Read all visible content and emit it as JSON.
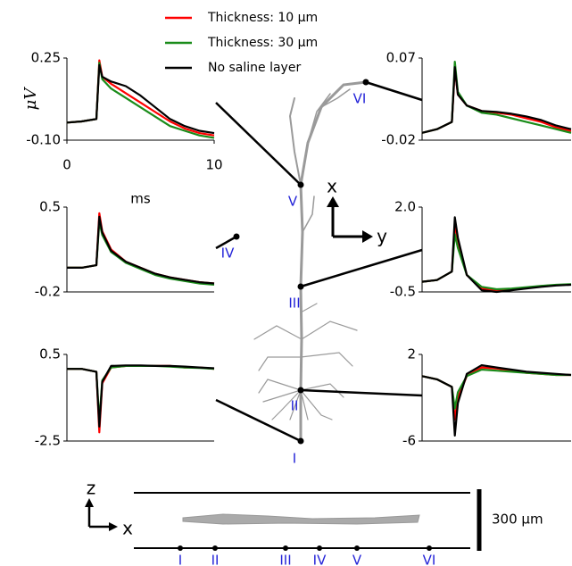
{
  "chart_data": [
    {
      "type": "line",
      "ylabel": "μV",
      "xlabel": "ms",
      "x": [
        0,
        1,
        2,
        2.2,
        2.4,
        3,
        4,
        5,
        6,
        7,
        8,
        9,
        10
      ],
      "xlim": [
        0,
        10
      ],
      "xticks": [
        0,
        10
      ],
      "ylim": [
        -0.1,
        0.25
      ],
      "yticks": [
        {
          "value": -0.1,
          "label": "-0.10"
        },
        0.25
      ],
      "series": [
        {
          "name": "Thickness: 10 μm",
          "color": "#ff0000",
          "values": [
            -0.025,
            -0.02,
            -0.01,
            0.24,
            0.17,
            0.14,
            0.1,
            0.06,
            0.02,
            -0.02,
            -0.05,
            -0.07,
            -0.08
          ]
        },
        {
          "name": "Thickness: 30 μm",
          "color": "#1a8c1a",
          "values": [
            -0.025,
            -0.02,
            -0.01,
            0.23,
            0.16,
            0.12,
            0.08,
            0.04,
            0.0,
            -0.04,
            -0.06,
            -0.08,
            -0.09
          ]
        },
        {
          "name": "No saline layer",
          "color": "#000000",
          "values": [
            -0.025,
            -0.02,
            -0.01,
            0.22,
            0.17,
            0.15,
            0.13,
            0.09,
            0.04,
            -0.01,
            -0.04,
            -0.06,
            -0.07
          ]
        }
      ]
    },
    {
      "type": "line",
      "x": [
        0,
        1,
        2,
        2.2,
        2.4,
        3,
        4,
        5,
        6,
        7,
        8,
        9,
        10
      ],
      "xlim": [
        0,
        10
      ],
      "ylim": [
        -0.02,
        0.07
      ],
      "yticks": [
        -0.02,
        0.07
      ],
      "series": [
        {
          "color": "#ff0000",
          "values": [
            -0.012,
            -0.008,
            0.0,
            0.058,
            0.03,
            0.018,
            0.012,
            0.01,
            0.008,
            0.004,
            0.0,
            -0.006,
            -0.01
          ]
        },
        {
          "color": "#1a8c1a",
          "values": [
            -0.012,
            -0.008,
            0.0,
            0.066,
            0.033,
            0.018,
            0.01,
            0.008,
            0.004,
            0.0,
            -0.004,
            -0.008,
            -0.012
          ]
        },
        {
          "color": "#000000",
          "values": [
            -0.012,
            -0.008,
            0.0,
            0.06,
            0.03,
            0.018,
            0.012,
            0.011,
            0.009,
            0.006,
            0.002,
            -0.004,
            -0.008
          ]
        }
      ]
    },
    {
      "type": "line",
      "x": [
        0,
        1,
        2,
        2.2,
        2.4,
        3,
        4,
        5,
        6,
        7,
        8,
        9,
        10
      ],
      "xlim": [
        0,
        10
      ],
      "ylim": [
        -0.2,
        0.5
      ],
      "yticks": [
        -0.2,
        0.5
      ],
      "series": [
        {
          "color": "#ff0000",
          "values": [
            0,
            0,
            0.02,
            0.45,
            0.3,
            0.15,
            0.05,
            0,
            -0.05,
            -0.08,
            -0.1,
            -0.12,
            -0.13
          ]
        },
        {
          "color": "#1a8c1a",
          "values": [
            0,
            0,
            0.02,
            0.38,
            0.27,
            0.13,
            0.04,
            -0.01,
            -0.06,
            -0.09,
            -0.11,
            -0.13,
            -0.14
          ]
        },
        {
          "color": "#000000",
          "values": [
            0,
            0,
            0.02,
            0.42,
            0.29,
            0.14,
            0.05,
            0,
            -0.05,
            -0.08,
            -0.1,
            -0.12,
            -0.13
          ]
        }
      ]
    },
    {
      "type": "line",
      "x": [
        0,
        1,
        2,
        2.2,
        2.4,
        3,
        4,
        5,
        6,
        7,
        8,
        9,
        10
      ],
      "xlim": [
        0,
        10
      ],
      "ylim": [
        -0.5,
        2.0
      ],
      "yticks": [
        -0.5,
        {
          "value": 2.0,
          "label": "2.0"
        }
      ],
      "series": [
        {
          "color": "#ff0000",
          "values": [
            -0.2,
            -0.15,
            0.1,
            1.5,
            1.0,
            0.0,
            -0.4,
            -0.45,
            -0.42,
            -0.38,
            -0.33,
            -0.3,
            -0.28
          ]
        },
        {
          "color": "#1a8c1a",
          "values": [
            -0.2,
            -0.15,
            0.1,
            1.2,
            0.8,
            0.0,
            -0.35,
            -0.42,
            -0.4,
            -0.36,
            -0.32,
            -0.29,
            -0.27
          ]
        },
        {
          "color": "#000000",
          "values": [
            -0.2,
            -0.15,
            0.1,
            1.7,
            1.1,
            0.0,
            -0.45,
            -0.5,
            -0.45,
            -0.4,
            -0.35,
            -0.31,
            -0.29
          ]
        }
      ]
    },
    {
      "type": "line",
      "x": [
        0,
        1,
        2,
        2.2,
        2.4,
        3,
        4,
        5,
        6,
        7,
        8,
        9,
        10
      ],
      "xlim": [
        0,
        10
      ],
      "ylim": [
        -2.5,
        0.5
      ],
      "yticks": [
        -2.5,
        0.5
      ],
      "series": [
        {
          "color": "#ff0000",
          "values": [
            0,
            0,
            -0.1,
            -2.2,
            -0.5,
            0.05,
            0.1,
            0.1,
            0.1,
            0.1,
            0.05,
            0.05,
            0
          ]
        },
        {
          "color": "#1a8c1a",
          "values": [
            0,
            0,
            -0.1,
            -1.8,
            -0.4,
            0.05,
            0.1,
            0.1,
            0.1,
            0.08,
            0.05,
            0.03,
            0
          ]
        },
        {
          "color": "#000000",
          "values": [
            0,
            0,
            -0.1,
            -2.0,
            -0.45,
            0.1,
            0.12,
            0.12,
            0.1,
            0.1,
            0.08,
            0.05,
            0.02
          ]
        }
      ]
    },
    {
      "type": "line",
      "x": [
        0,
        1,
        2,
        2.2,
        2.4,
        3,
        4,
        5,
        6,
        7,
        8,
        9,
        10
      ],
      "xlim": [
        0,
        10
      ],
      "ylim": [
        -6,
        2
      ],
      "yticks": [
        -6,
        2
      ],
      "series": [
        {
          "color": "#ff0000",
          "values": [
            0,
            -0.3,
            -1,
            -4,
            -2,
            0,
            0.8,
            0.7,
            0.5,
            0.3,
            0.2,
            0.1,
            0.1
          ]
        },
        {
          "color": "#1a8c1a",
          "values": [
            0,
            -0.3,
            -1,
            -3,
            -1.5,
            0,
            0.6,
            0.5,
            0.4,
            0.3,
            0.2,
            0.1,
            0.1
          ]
        },
        {
          "color": "#000000",
          "values": [
            0,
            -0.3,
            -1,
            -5.5,
            -2.5,
            0.2,
            1.0,
            0.8,
            0.6,
            0.4,
            0.3,
            0.2,
            0.1
          ]
        }
      ]
    }
  ],
  "diagram": {
    "neuron_labels": [
      "I",
      "II",
      "III",
      "IV",
      "V",
      "VI"
    ],
    "orientation": {
      "x": "x",
      "y": "y"
    },
    "side_view": {
      "z": "z",
      "x": "x",
      "scale": "300 μm",
      "labels": [
        "I",
        "II",
        "III",
        "IV",
        "V",
        "VI"
      ]
    }
  }
}
